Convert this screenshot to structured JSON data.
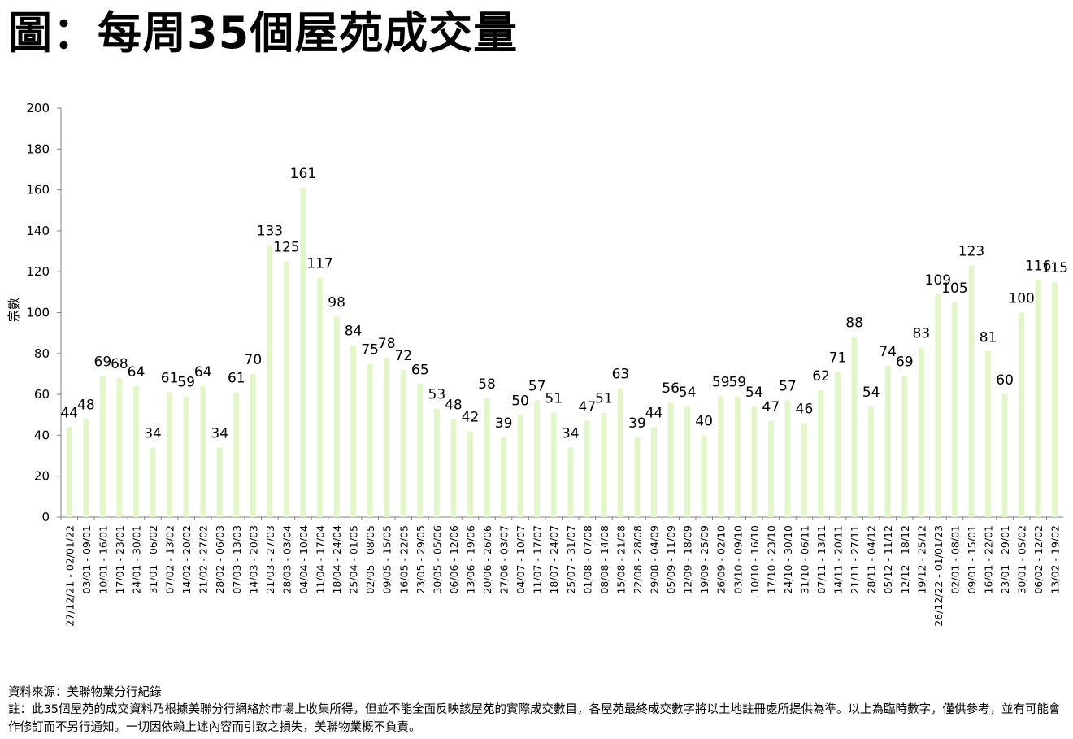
{
  "title": "圖：每周35個屋苑成交量",
  "chart_data": {
    "type": "bar",
    "ylabel": "宗數",
    "ylim": [
      0,
      200
    ],
    "yticks": [
      0,
      20,
      40,
      60,
      80,
      100,
      120,
      140,
      160,
      180,
      200
    ],
    "bar_color": "#e3f6c9",
    "categories": [
      "27/12/21 - 02/01/22",
      "03/01 - 09/01",
      "10/01 - 16/01",
      "17/01 - 23/01",
      "24/01 - 30/01",
      "31/01 - 06/02",
      "07/02 - 13/02",
      "14/02 - 20/02",
      "21/02 - 27/02",
      "28/02 - 06/03",
      "07/03 - 13/03",
      "14/03 - 20/03",
      "21/03 - 27/03",
      "28/03 - 03/04",
      "04/04 - 10/04",
      "11/04 - 17/04",
      "18/04 - 24/04",
      "25/04 - 01/05",
      "02/05 - 08/05",
      "09/05 - 15/05",
      "16/05 - 22/05",
      "23/05 - 29/05",
      "30/05 - 05/06",
      "06/06 - 12/06",
      "13/06 - 19/06",
      "20/06 - 26/06",
      "27/06 - 03/07",
      "04/07 - 10/07",
      "11/07 - 17/07",
      "18/07 - 24/07",
      "25/07 - 31/07",
      "01/08 - 07/08",
      "08/08 - 14/08",
      "15/08 - 21/08",
      "22/08 - 28/08",
      "29/08 - 04/09",
      "05/09 - 11/09",
      "12/09 - 18/09",
      "19/09 - 25/09",
      "26/09 - 02/10",
      "03/10 - 09/10",
      "10/10 - 16/10",
      "17/10 - 23/10",
      "24/10 - 30/10",
      "31/10 - 06/11",
      "07/11 - 13/11",
      "14/11 - 20/11",
      "21/11 - 27/11",
      "28/11 - 04/12",
      "05/12 - 11/12",
      "12/12 - 18/12",
      "19/12 - 25/12",
      "26/12/22 - 01/01/23",
      "02/01 - 08/01",
      "09/01 - 15/01",
      "16/01 - 22/01",
      "23/01 - 29/01",
      "30/01 - 05/02",
      "06/02 - 12/02",
      "13/02 - 19/02"
    ],
    "values": [
      44,
      48,
      69,
      68,
      64,
      34,
      61,
      59,
      64,
      34,
      61,
      70,
      133,
      125,
      161,
      117,
      98,
      84,
      75,
      78,
      72,
      65,
      53,
      48,
      42,
      58,
      39,
      50,
      57,
      51,
      34,
      47,
      51,
      63,
      39,
      44,
      56,
      54,
      40,
      59,
      59,
      54,
      47,
      57,
      46,
      62,
      71,
      88,
      54,
      74,
      69,
      83,
      109,
      105,
      123,
      81,
      60,
      100,
      116,
      115
    ]
  },
  "source": "資料來源：美聯物業分行紀錄",
  "note": "註：此35個屋苑的成交資料乃根據美聯分行網絡於市場上收集所得，但並不能全面反映該屋苑的實際成交數目，各屋苑最終成交數字將以土地註冊處所提供為準。以上為臨時數字，僅供參考，並有可能會作修訂而不另行通知。一切因依賴上述內容而引致之損失，美聯物業概不負責。"
}
